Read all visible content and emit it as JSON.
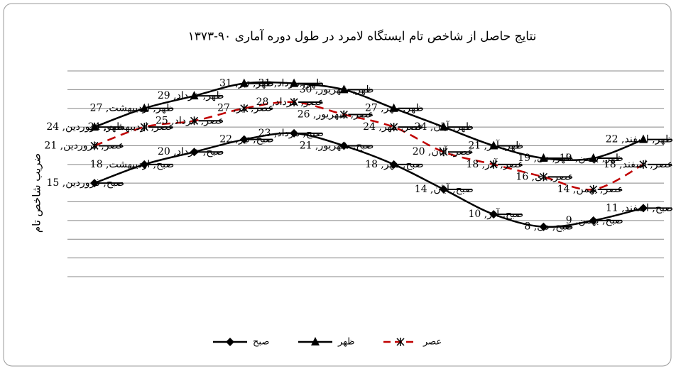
{
  "chart_data": {
    "type": "line",
    "title": "نتایج حاصل از شاخص تام ایستگاه لامرد در طول دوره آماری ۹۰-۱۳۷۳",
    "y_label": "ضریب شاخص تام",
    "series": [
      {
        "name": "صبح",
        "color": "#000000",
        "marker": "diamond",
        "dash": false,
        "values": [
          15,
          18,
          20,
          22,
          23,
          21,
          18,
          14,
          10,
          8,
          9,
          11
        ],
        "value_labels": [
          "صبح, فروردین, 15",
          "صبح, اردیبهشت, 18",
          "صبح, خرداد, 20",
          "صبح, تیر, 22",
          "صبح, مرداد, 23",
          "صبح, شهریور, 21",
          "صبح, مهر, 18",
          "صبح, آبان, 14",
          "صبح, آذر, 10",
          "صبح, دی, 8",
          "صبح, بهمن, 9",
          "صبح, اسفند, 11"
        ]
      },
      {
        "name": "ظهر",
        "color": "#000000",
        "marker": "triangle",
        "dash": false,
        "values": [
          24,
          27,
          29,
          31,
          31,
          30,
          27,
          24,
          21,
          19,
          19,
          22
        ],
        "value_labels": [
          "ظهر, فروردین, 24",
          "ظهر, اردیبهشت, 27",
          "ظهر, خرداد, 29",
          "ظهر, تیر, 31",
          "ظهر, مرداد, 31",
          "ظهر, شهریور, 30",
          "ظهر, مهر, 27",
          "ظهر, آبان, 24",
          "ظهر, آذر, 21",
          "ظهر, دی, 19",
          "ظهر, بهمن, 19",
          "ظهر, اسفند, 22"
        ]
      },
      {
        "name": "عصر",
        "color": "#c00000",
        "marker": "star",
        "dash": true,
        "values": [
          21,
          24,
          25,
          27,
          28,
          26,
          24,
          20,
          18,
          16,
          14,
          18
        ],
        "value_labels": [
          "عصر, فروردین, 21",
          "عصر, اردیبهشت, 24",
          "عصر, خرداد, 25",
          "عصر, تیر, 27",
          "عصر, مرداد, 28",
          "عصر, شهریور, 26",
          "عصر, مهر, 24",
          "عصر, آبان, 20",
          "عصر, آذر, 18",
          "عصر, دی, 16",
          "عصر, بهمن, 14",
          "عصر, اسفند, 18"
        ]
      }
    ],
    "ylim": [
      0,
      33
    ],
    "yticks": [
      0,
      3,
      6,
      9,
      12,
      15,
      18,
      21,
      24,
      27,
      30,
      33
    ],
    "grid": true,
    "legend": "bottom"
  }
}
